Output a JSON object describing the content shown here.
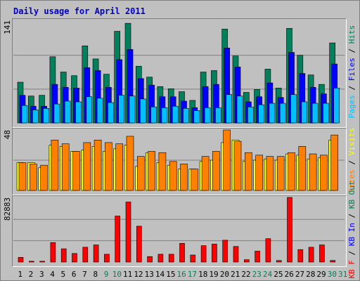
{
  "title": "Daily usage for April 2011",
  "colors": {
    "hits": "#00805c",
    "files": "#0000ff",
    "pages": "#00c0ff",
    "visits": "#ffff00",
    "sites": "#ff8000",
    "kbout": "#00805c",
    "kbin": "#0000ff",
    "kbf": "#ff0000",
    "weekday_label": "#000000",
    "weekend_label": "#00805c",
    "grid": "#808080"
  },
  "chart_data": [
    {
      "type": "bar",
      "name": "hits-files-pages",
      "max_label": "141",
      "ylim": [
        0,
        141
      ],
      "grid_lines": [
        0.33,
        0.66
      ],
      "legend": [
        {
          "text": "Pages",
          "color_key": "pages"
        },
        {
          "text": " / ",
          "color_key": "weekday_label"
        },
        {
          "text": "Files",
          "color_key": "files"
        },
        {
          "text": " / ",
          "color_key": "weekday_label"
        },
        {
          "text": "Hits",
          "color_key": "hits"
        }
      ],
      "categories": [
        "1",
        "2",
        "3",
        "4",
        "5",
        "6",
        "7",
        "8",
        "9",
        "10",
        "11",
        "12",
        "13",
        "14",
        "15",
        "16",
        "17",
        "18",
        "19",
        "20",
        "21",
        "22",
        "23",
        "24",
        "25",
        "26",
        "27",
        "28",
        "29",
        "30",
        "31"
      ],
      "series": [
        {
          "name": "Hits",
          "color_key": "hits",
          "values": [
            56,
            37,
            38,
            91,
            70,
            65,
            106,
            88,
            67,
            126,
            137,
            78,
            63,
            50,
            47,
            43,
            31,
            70,
            72,
            129,
            92,
            42,
            46,
            74,
            48,
            130,
            93,
            66,
            53,
            110,
            0
          ]
        },
        {
          "name": "Files",
          "color_key": "files",
          "values": [
            38,
            23,
            23,
            53,
            49,
            48,
            76,
            72,
            49,
            87,
            101,
            61,
            52,
            36,
            36,
            30,
            21,
            50,
            53,
            103,
            77,
            29,
            36,
            55,
            35,
            97,
            68,
            49,
            40,
            81,
            0
          ]
        },
        {
          "name": "Pages",
          "color_key": "pages",
          "values": [
            24,
            18,
            20,
            26,
            30,
            29,
            36,
            34,
            28,
            38,
            37,
            33,
            22,
            21,
            23,
            20,
            17,
            21,
            21,
            39,
            37,
            22,
            25,
            27,
            27,
            39,
            29,
            27,
            27,
            48,
            0
          ]
        }
      ]
    },
    {
      "type": "bar",
      "name": "visits-sites",
      "max_label": "48",
      "ylim": [
        0,
        48
      ],
      "grid_lines": [
        0.5
      ],
      "legend": [
        {
          "text": "Sites",
          "color_key": "sites"
        },
        {
          "text": " / ",
          "color_key": "weekday_label"
        },
        {
          "text": "Visits",
          "color_key": "visits"
        }
      ],
      "categories": [
        "1",
        "2",
        "3",
        "4",
        "5",
        "6",
        "7",
        "8",
        "9",
        "10",
        "11",
        "12",
        "13",
        "14",
        "15",
        "16",
        "17",
        "18",
        "19",
        "20",
        "21",
        "22",
        "23",
        "24",
        "25",
        "26",
        "27",
        "28",
        "29",
        "30",
        "31"
      ],
      "series": [
        {
          "name": "Visits",
          "color_key": "visits",
          "values": [
            22,
            22,
            18,
            36,
            35,
            31,
            32,
            35,
            31,
            33,
            36,
            19,
            30,
            22,
            20,
            17,
            17,
            23,
            24,
            38,
            40,
            23,
            24,
            25,
            24,
            29,
            28,
            25,
            26,
            40,
            0
          ]
        },
        {
          "name": "Sites",
          "color_key": "sites",
          "values": [
            22,
            21,
            20,
            40,
            37,
            31,
            38,
            40,
            38,
            37,
            43,
            27,
            31,
            30,
            23,
            21,
            17,
            27,
            31,
            48,
            39,
            30,
            28,
            27,
            27,
            30,
            35,
            29,
            28,
            44,
            0
          ]
        }
      ]
    },
    {
      "type": "bar",
      "name": "kbf-kbin-kbout",
      "max_label": "82883",
      "ylim": [
        0,
        82883
      ],
      "grid_lines": [
        0.33,
        0.66
      ],
      "legend": [
        {
          "text": "KB F",
          "color_key": "kbf"
        },
        {
          "text": " / ",
          "color_key": "weekday_label"
        },
        {
          "text": "KB In",
          "color_key": "kbin"
        },
        {
          "text": " / ",
          "color_key": "weekday_label"
        },
        {
          "text": "KB Out",
          "color_key": "kbout"
        }
      ],
      "categories": [
        "1",
        "2",
        "3",
        "4",
        "5",
        "6",
        "7",
        "8",
        "9",
        "10",
        "11",
        "12",
        "13",
        "14",
        "15",
        "16",
        "17",
        "18",
        "19",
        "20",
        "21",
        "22",
        "23",
        "24",
        "25",
        "26",
        "27",
        "28",
        "29",
        "30",
        "31"
      ],
      "series": [
        {
          "name": "KB F",
          "color_key": "kbf",
          "values": [
            6000,
            1000,
            1000,
            25000,
            17000,
            11000,
            19000,
            22000,
            10000,
            59000,
            77000,
            46000,
            7000,
            10000,
            10000,
            24000,
            9000,
            21000,
            23000,
            28000,
            20000,
            3000,
            14000,
            30000,
            2000,
            84000,
            16000,
            19000,
            22000,
            2000,
            0
          ]
        }
      ]
    }
  ],
  "weekend_days": [
    "9",
    "10",
    "16",
    "17",
    "23",
    "24",
    "30",
    "31"
  ]
}
